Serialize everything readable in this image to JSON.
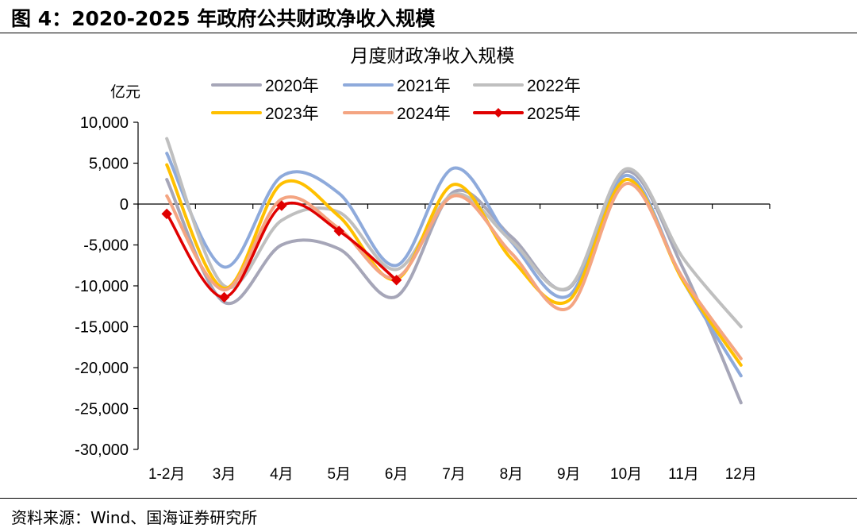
{
  "figure": {
    "title": "图 4：2020-2025 年政府公共财政净收入规模",
    "source": "资料来源：Wind、国海证券研究所"
  },
  "chart_data": {
    "type": "line",
    "title": "月度财政净收入规模",
    "ylabel": "亿元",
    "xlabel": "",
    "categories": [
      "1-2月",
      "3月",
      "4月",
      "5月",
      "6月",
      "7月",
      "8月",
      "9月",
      "10月",
      "11月",
      "12月"
    ],
    "ylim": [
      -30000,
      10000
    ],
    "yticks": [
      10000,
      5000,
      0,
      -5000,
      -10000,
      -15000,
      -20000,
      -25000,
      -30000
    ],
    "ytick_labels": [
      "10,000",
      "5,000",
      "0",
      "-5,000",
      "-10,000",
      "-15,000",
      "-20,000",
      "-25,000",
      "-30,000"
    ],
    "legend_position": "top",
    "series": [
      {
        "name": "2020年",
        "color": "#a6a6b8",
        "marker": false,
        "values": [
          3000,
          -12000,
          -5000,
          -5500,
          -11300,
          1500,
          -4000,
          -10300,
          4000,
          -8000,
          -24300
        ]
      },
      {
        "name": "2021年",
        "color": "#8eaadb",
        "marker": false,
        "values": [
          6200,
          -7700,
          3400,
          1300,
          -7500,
          4400,
          -4600,
          -11200,
          3500,
          -9500,
          -21000
        ]
      },
      {
        "name": "2022年",
        "color": "#bfbfbf",
        "marker": false,
        "values": [
          8000,
          -10000,
          -2000,
          -1000,
          -8000,
          1200,
          -4500,
          -10200,
          4300,
          -6700,
          -15000
        ]
      },
      {
        "name": "2023年",
        "color": "#ffc000",
        "marker": false,
        "values": [
          4800,
          -10300,
          2500,
          -1500,
          -9200,
          2400,
          -6700,
          -11800,
          3000,
          -9500,
          -19700
        ]
      },
      {
        "name": "2024年",
        "color": "#f4a582",
        "marker": false,
        "values": [
          1000,
          -10500,
          600,
          -3000,
          -9000,
          1000,
          -6000,
          -12700,
          2500,
          -9200,
          -18900
        ]
      },
      {
        "name": "2025年",
        "color": "#e00000",
        "marker": true,
        "values": [
          -1200,
          -11400,
          -200,
          -3300,
          -9300,
          null,
          null,
          null,
          null,
          null,
          null
        ]
      }
    ]
  }
}
